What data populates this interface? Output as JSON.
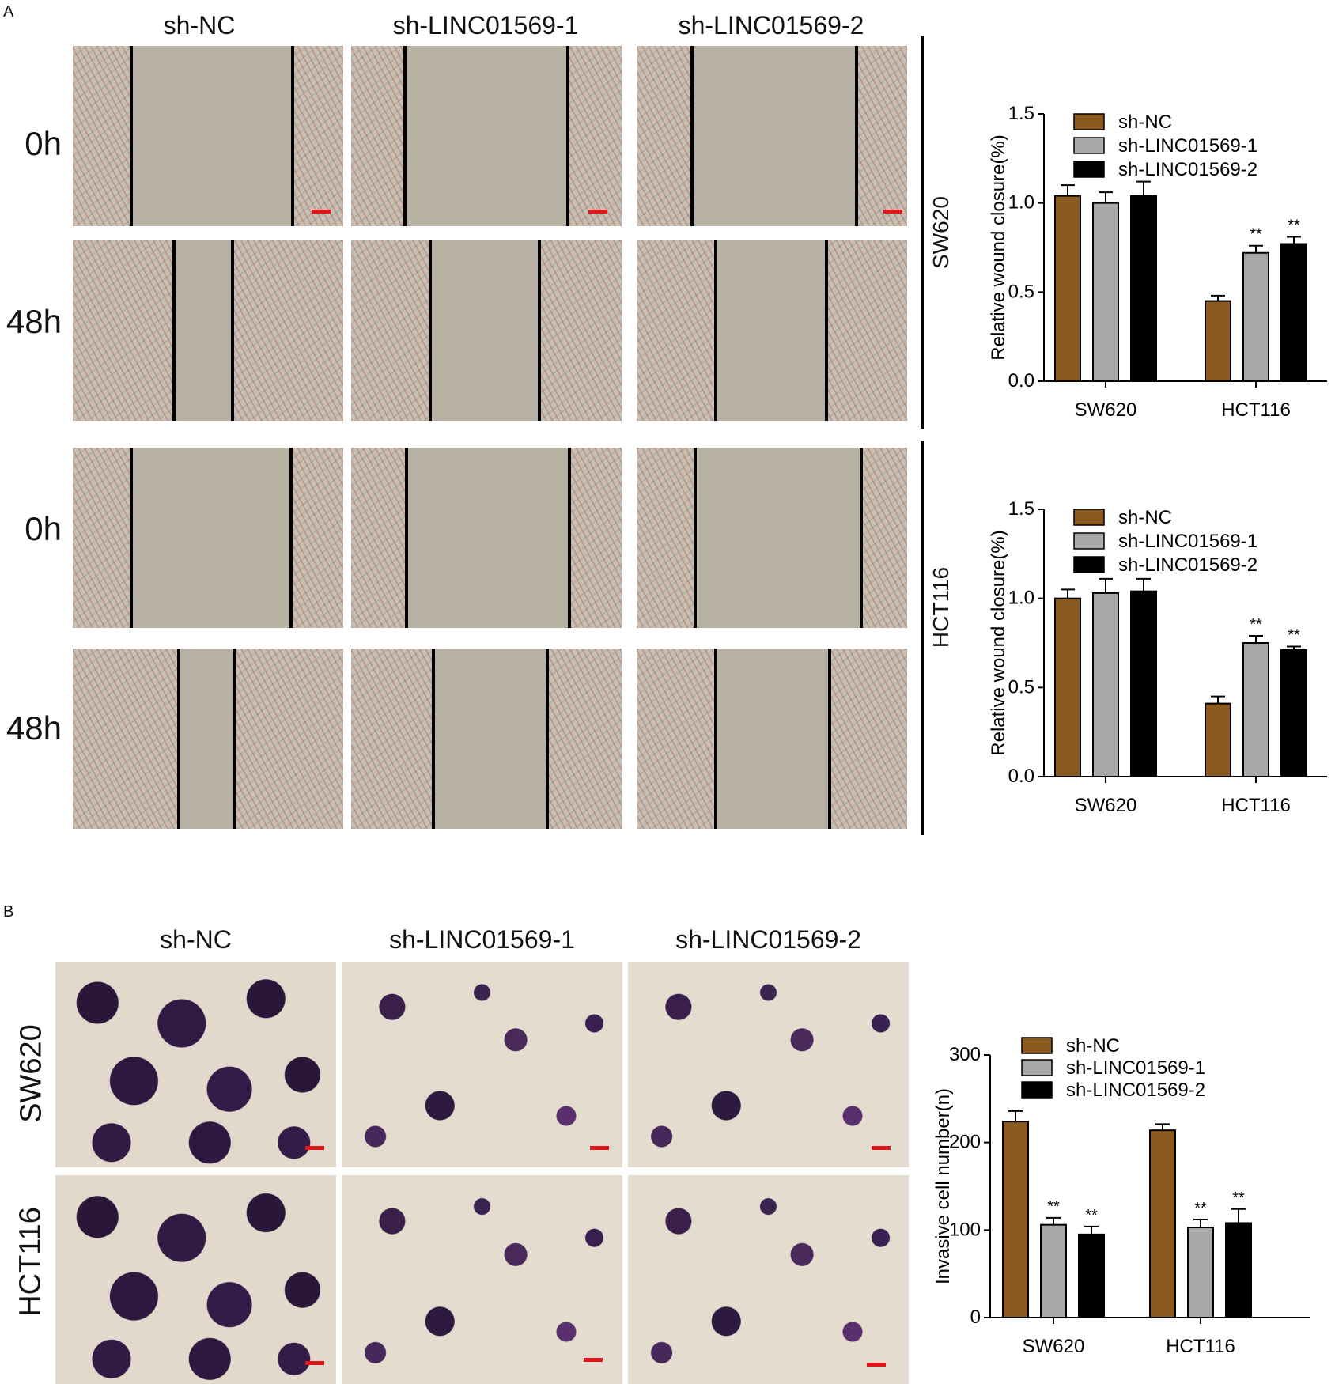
{
  "panel_a": {
    "letter": "A",
    "columns": [
      "sh-NC",
      "sh-LINC01569-1",
      "sh-LINC01569-2"
    ],
    "rows": [
      "0h",
      "48h",
      "0h",
      "48h"
    ],
    "cell_lines": [
      "SW620",
      "HCT116"
    ]
  },
  "panel_b": {
    "letter": "B",
    "columns": [
      "sh-NC",
      "sh-LINC01569-1",
      "sh-LINC01569-2"
    ],
    "rows": [
      "SW620",
      "HCT116"
    ]
  },
  "colors": {
    "sh_NC": "#8b5a1e",
    "sh_LINC01569_1": "#a8a8a8",
    "sh_LINC01569_2": "#000000",
    "scale_bar": "#e0161a"
  },
  "chart_data": [
    {
      "type": "bar",
      "ylabel": "Relative wound closure(%)",
      "categories": [
        "SW620",
        "HCT116"
      ],
      "ylim": [
        0,
        1.5
      ],
      "yticks": [
        "0.0",
        "0.5",
        "1.0",
        "1.5"
      ],
      "series": [
        {
          "name": "sh-NC",
          "values": [
            1.04,
            0.45
          ],
          "errors": [
            0.06,
            0.03
          ],
          "marks": [
            "",
            ""
          ]
        },
        {
          "name": "sh-LINC01569-1",
          "values": [
            1.0,
            0.72
          ],
          "errors": [
            0.06,
            0.04
          ],
          "marks": [
            "",
            "**"
          ]
        },
        {
          "name": "sh-LINC01569-2",
          "values": [
            1.04,
            0.77
          ],
          "errors": [
            0.08,
            0.04
          ],
          "marks": [
            "",
            "**"
          ]
        }
      ]
    },
    {
      "type": "bar",
      "ylabel": "Relative wound closure(%)",
      "categories": [
        "SW620",
        "HCT116"
      ],
      "ylim": [
        0,
        1.5
      ],
      "yticks": [
        "0.0",
        "0.5",
        "1.0",
        "1.5"
      ],
      "series": [
        {
          "name": "sh-NC",
          "values": [
            1.0,
            0.41
          ],
          "errors": [
            0.05,
            0.04
          ],
          "marks": [
            "",
            ""
          ]
        },
        {
          "name": "sh-LINC01569-1",
          "values": [
            1.03,
            0.75
          ],
          "errors": [
            0.08,
            0.04
          ],
          "marks": [
            "",
            "**"
          ]
        },
        {
          "name": "sh-LINC01569-2",
          "values": [
            1.04,
            0.71
          ],
          "errors": [
            0.07,
            0.02
          ],
          "marks": [
            "",
            "**"
          ]
        }
      ]
    },
    {
      "type": "bar",
      "ylabel": "Invasive cell number(n)",
      "categories": [
        "SW620",
        "HCT116"
      ],
      "ylim": [
        0,
        300
      ],
      "yticks": [
        "0",
        "100",
        "200",
        "300"
      ],
      "series": [
        {
          "name": "sh-NC",
          "values": [
            224,
            214
          ],
          "errors": [
            12,
            7
          ],
          "marks": [
            "",
            ""
          ]
        },
        {
          "name": "sh-LINC01569-1",
          "values": [
            106,
            103
          ],
          "errors": [
            8,
            9
          ],
          "marks": [
            "**",
            "**"
          ]
        },
        {
          "name": "sh-LINC01569-2",
          "values": [
            95,
            108
          ],
          "errors": [
            9,
            16
          ],
          "marks": [
            "**",
            "**"
          ]
        }
      ]
    }
  ]
}
